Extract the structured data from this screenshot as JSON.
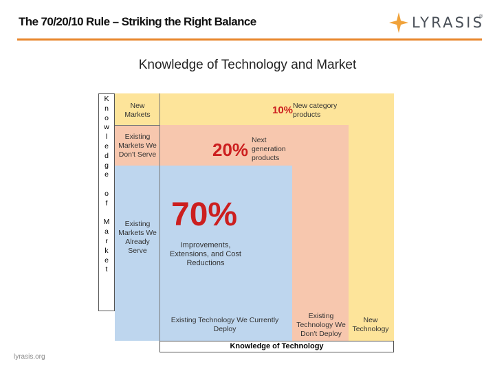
{
  "header": {
    "title": "The 70/20/10 Rule – Striking the Right Balance",
    "logo_text": "LYRASIS",
    "logo_mark": "®",
    "accent_color": "#e8852a"
  },
  "subtitle": "Knowledge of Technology and Market",
  "diagram": {
    "y_axis_label": "Knowledge of Market",
    "y_axis_letters_top": [
      "K",
      "n",
      "o",
      "w",
      "l",
      "e",
      "d",
      "g",
      "e"
    ],
    "y_axis_letters_mid": [
      "o",
      "f"
    ],
    "y_axis_letters_bottom": [
      "M",
      "a",
      "r",
      "k",
      "e",
      "t"
    ],
    "x_axis_label": "Knowledge of Technology",
    "rows": {
      "new_markets": "New Markets",
      "existing_markets_dont_serve": "Existing Markets We Don't Serve",
      "existing_markets_serve": "Existing Markets We Already Serve"
    },
    "columns": {
      "existing_technology": "Existing Technology We Currently Deploy",
      "existing_technology_dont": "Existing Technology We Don't Deploy",
      "new_technology": "New Technology"
    },
    "zones": [
      {
        "percent": "10%",
        "label": "New category products",
        "color": "#fde49a"
      },
      {
        "percent": "20%",
        "label": "Next generation products",
        "color": "#f7c7ae"
      },
      {
        "percent": "70%",
        "label": "Improvements, Extensions, and Cost Reductions",
        "color": "#bed6ee"
      }
    ],
    "percent_color": "#cc1f1f"
  },
  "footer": "lyrasis.org"
}
